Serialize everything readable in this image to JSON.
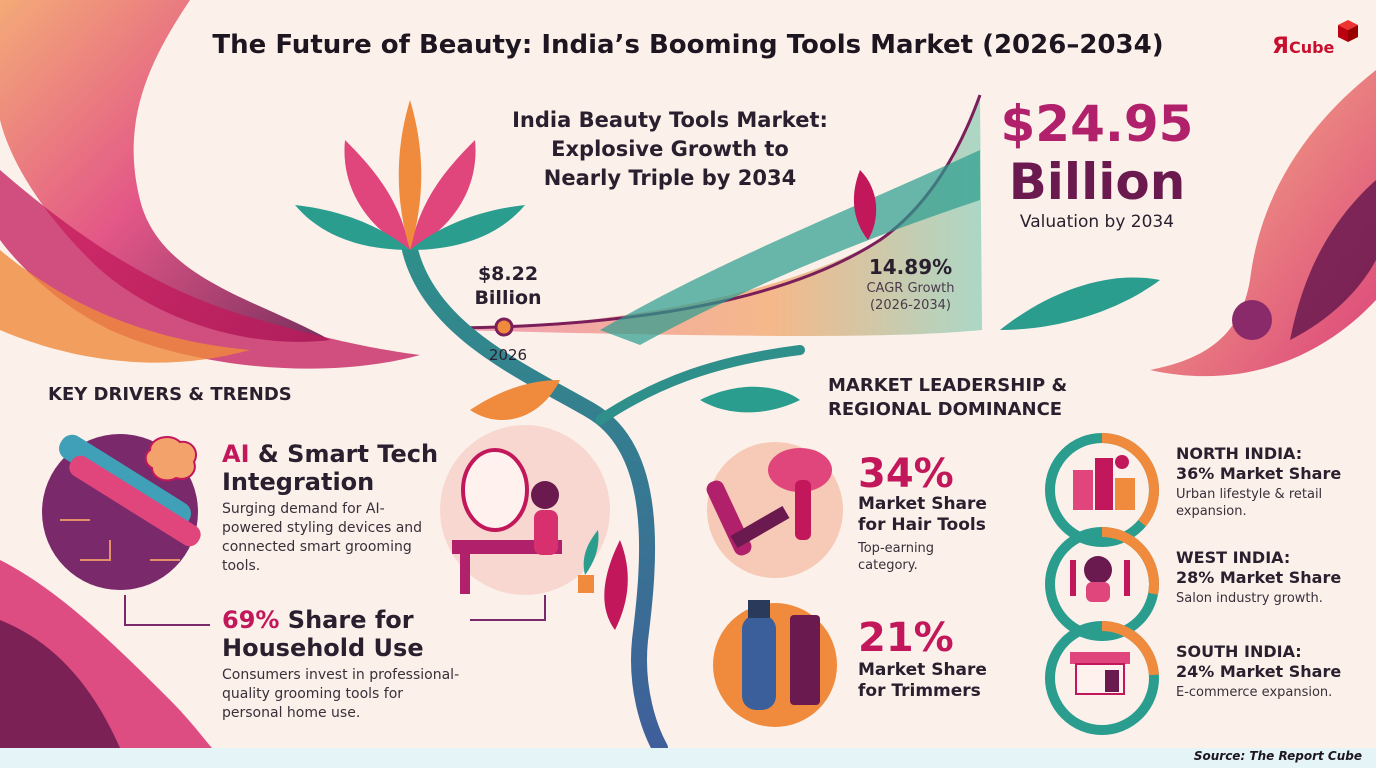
{
  "title": "The Future of Beauty: India’s Booming Tools Market (2026–2034)",
  "logo": {
    "r": "Я",
    "cube": "Cube"
  },
  "hero": {
    "line1": "India Beauty Tools Market:",
    "line2": "Explosive Growth to",
    "line3": "Nearly Triple by 2034"
  },
  "valuation": {
    "value": "$24.95",
    "unit": "Billion",
    "label": "Valuation by 2034"
  },
  "start": {
    "value": "$8.22",
    "unit": "Billion",
    "year": "2026"
  },
  "cagr": {
    "value": "14.89%",
    "label": "CAGR Growth",
    "period": "(2026-2034)"
  },
  "drivers": {
    "heading": "KEY DRIVERS & TRENDS",
    "ai": {
      "title_accent": "AI",
      "title_rest": " & Smart Tech",
      "title_line2": "Integration",
      "desc": "Surging demand for AI-powered styling devices and connected smart grooming tools."
    },
    "household": {
      "title_accent": "69%",
      "title_rest": " Share for",
      "title_line2": "Household Use",
      "desc": "Consumers invest in professional-quality grooming tools for personal home use."
    }
  },
  "leadership": {
    "heading_line1": "MARKET LEADERSHIP &",
    "heading_line2": "REGIONAL DOMINANCE",
    "hair": {
      "pct": "34%",
      "label_line1": "Market Share",
      "label_line2": "for Hair Tools",
      "sub_line1": "Top-earning",
      "sub_line2": "category."
    },
    "trimmers": {
      "pct": "21%",
      "label_line1": "Market Share",
      "label_line2": "for Trimmers"
    }
  },
  "regions": [
    {
      "name": "NORTH INDIA:",
      "share": "36% Market Share",
      "desc": "Urban lifestyle & retail expansion.",
      "percent": 36
    },
    {
      "name": "WEST INDIA:",
      "share": "28% Market Share",
      "desc": "Salon industry growth.",
      "percent": 28
    },
    {
      "name": "SOUTH INDIA:",
      "share": "24% Market Share",
      "desc": "E-commerce expansion.",
      "percent": 24
    }
  ],
  "source": "Source: The Report Cube",
  "colors": {
    "magenta": "#c2185b",
    "plum": "#6a1a4f",
    "teal": "#2a9d8f",
    "orange": "#f08a3c",
    "cream": "#fbf1ea"
  },
  "icons": [
    "lotus-icon",
    "flat-iron-icon",
    "brain-icon",
    "vanity-mirror-icon",
    "hair-dryer-icon",
    "trimmer-icon",
    "city-icon",
    "stylist-icon",
    "storefront-icon"
  ]
}
